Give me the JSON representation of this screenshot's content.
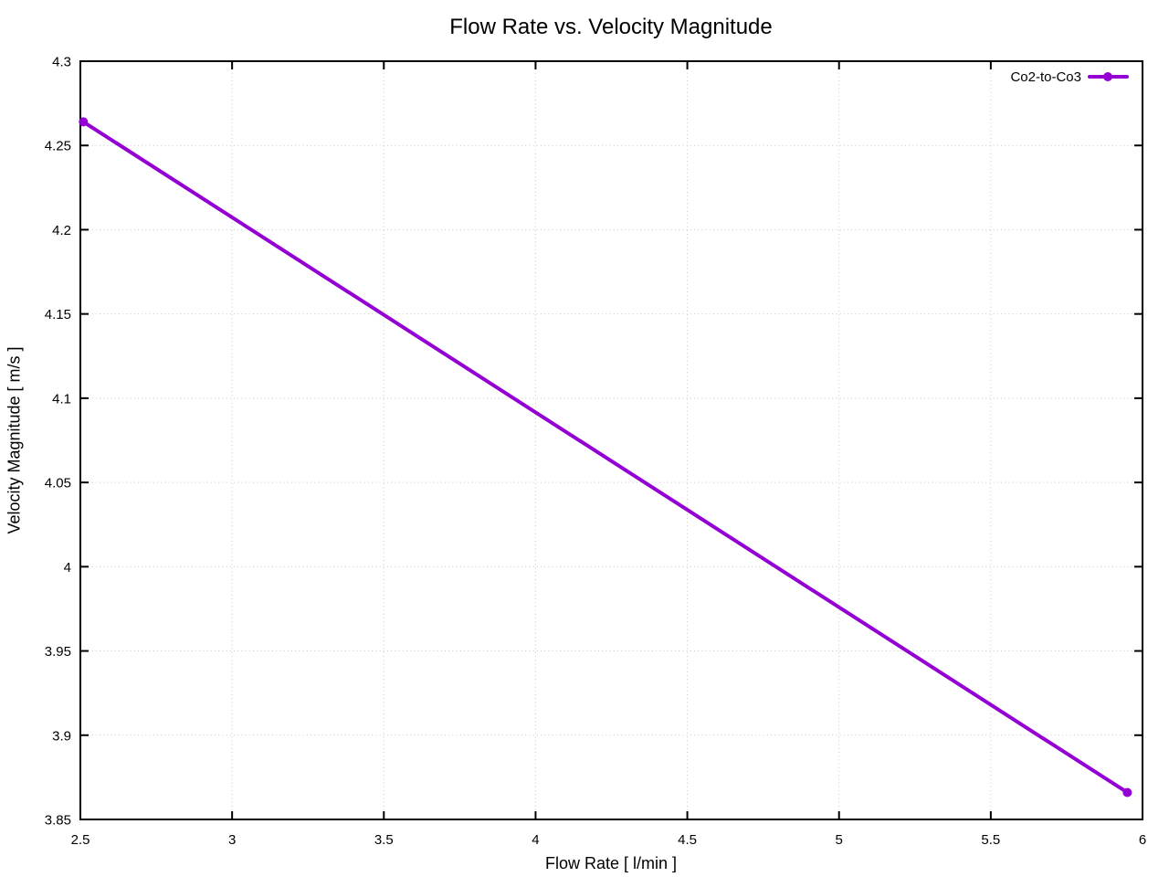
{
  "chart_data": {
    "type": "line",
    "title": "Flow Rate vs. Velocity Magnitude",
    "xlabel": "Flow Rate [ l/min ]",
    "ylabel": "Velocity Magnitude [ m/s ]",
    "xlim": [
      2.5,
      6
    ],
    "ylim": [
      3.85,
      4.3
    ],
    "xticks": [
      2.5,
      3,
      3.5,
      4,
      4.5,
      5,
      5.5,
      6
    ],
    "xtick_labels": [
      "2.5",
      "3",
      "3.5",
      "4",
      "4.5",
      "5",
      "5.5",
      "6"
    ],
    "yticks": [
      3.85,
      3.9,
      3.95,
      4,
      4.05,
      4.1,
      4.15,
      4.2,
      4.25,
      4.3
    ],
    "ytick_labels": [
      "3.85",
      "3.9",
      "3.95",
      "4",
      "4.05",
      "4.1",
      "4.15",
      "4.2",
      "4.25",
      "4.3"
    ],
    "grid": "dotted",
    "grid_color": "#c8c8c8",
    "axis_color": "#000000",
    "background": "#ffffff",
    "legend_position": "top-right",
    "series": [
      {
        "name": "Co2-to-Co3",
        "color": "#9400d3",
        "marker": "filled-circle",
        "points": [
          [
            2.51,
            4.264
          ],
          [
            5.95,
            3.866
          ]
        ]
      }
    ]
  }
}
